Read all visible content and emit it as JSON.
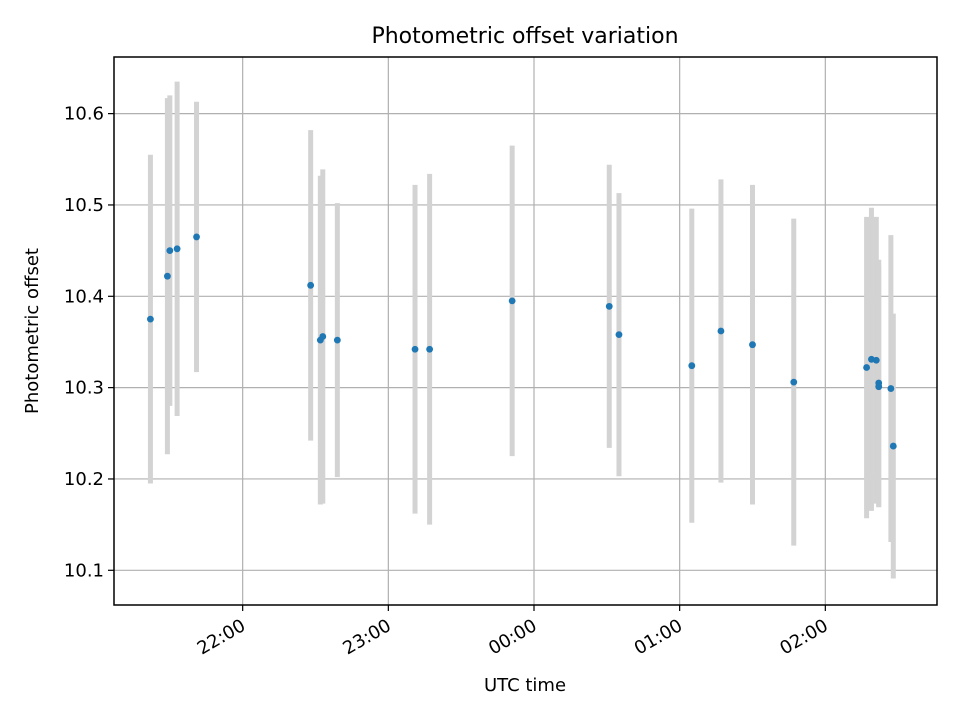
{
  "chart_data": {
    "type": "scatter",
    "title": "Photometric offset variation",
    "xlabel": "UTC time",
    "ylabel": "Photometric offset",
    "x_unit": "UTC time, clock time across midnight (times after 00:00 are on the following day)",
    "xlim": [
      "21:07",
      "02:46"
    ],
    "ylim": [
      10.062,
      10.662
    ],
    "x_ticks": [
      "22:00",
      "23:00",
      "00:00",
      "01:00",
      "02:00"
    ],
    "y_ticks": [
      10.1,
      10.2,
      10.3,
      10.4,
      10.5,
      10.6
    ],
    "grid": true,
    "legend": "none",
    "colors": {
      "points": "#1f77b4",
      "errorbars": "#d3d3d3"
    },
    "points": [
      {
        "x": "21:22",
        "y": 10.375,
        "err": 0.18
      },
      {
        "x": "21:29",
        "y": 10.422,
        "err": 0.195
      },
      {
        "x": "21:30",
        "y": 10.45,
        "err": 0.17
      },
      {
        "x": "21:33",
        "y": 10.452,
        "err": 0.183
      },
      {
        "x": "21:41",
        "y": 10.465,
        "err": 0.148
      },
      {
        "x": "22:28",
        "y": 10.412,
        "err": 0.17
      },
      {
        "x": "22:32",
        "y": 10.352,
        "err": 0.18
      },
      {
        "x": "22:33",
        "y": 10.356,
        "err": 0.183
      },
      {
        "x": "22:39",
        "y": 10.352,
        "err": 0.15
      },
      {
        "x": "23:11",
        "y": 10.342,
        "err": 0.18
      },
      {
        "x": "23:17",
        "y": 10.342,
        "err": 0.192
      },
      {
        "x": "23:51",
        "y": 10.395,
        "err": 0.17
      },
      {
        "x": "00:31",
        "y": 10.389,
        "err": 0.155
      },
      {
        "x": "00:35",
        "y": 10.358,
        "err": 0.155
      },
      {
        "x": "01:05",
        "y": 10.324,
        "err": 0.172
      },
      {
        "x": "01:17",
        "y": 10.362,
        "err": 0.166
      },
      {
        "x": "01:30",
        "y": 10.347,
        "err": 0.175
      },
      {
        "x": "01:47",
        "y": 10.306,
        "err": 0.179
      },
      {
        "x": "02:17",
        "y": 10.322,
        "err": 0.165
      },
      {
        "x": "02:19",
        "y": 10.331,
        "err": 0.166
      },
      {
        "x": "02:21",
        "y": 10.33,
        "err": 0.157
      },
      {
        "x": "02:22",
        "y": 10.305,
        "err": 0.135
      },
      {
        "x": "02:22",
        "y": 10.301,
        "err": 0.132
      },
      {
        "x": "02:27",
        "y": 10.299,
        "err": 0.168
      },
      {
        "x": "02:28",
        "y": 10.236,
        "err": 0.145
      }
    ]
  }
}
